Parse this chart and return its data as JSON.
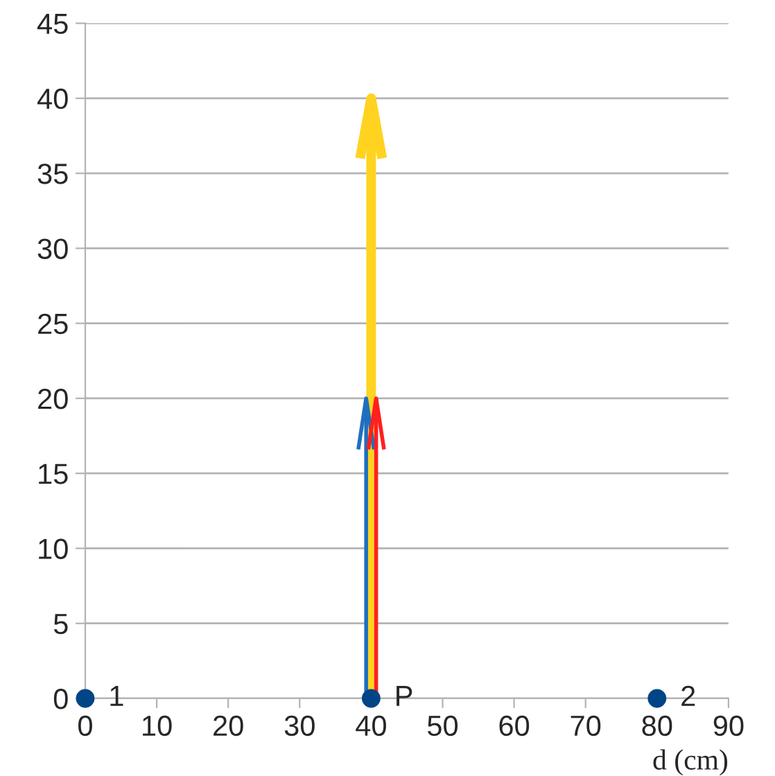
{
  "chart_data": {
    "type": "scatter",
    "xlabel": "d (cm)",
    "xlim": [
      0,
      90
    ],
    "xticks": [
      0,
      10,
      20,
      30,
      40,
      50,
      60,
      70,
      80,
      90
    ],
    "ylim": [
      0,
      45
    ],
    "yticks": [
      0,
      5,
      10,
      15,
      20,
      25,
      30,
      35,
      40,
      45
    ],
    "grid": "y",
    "legend": false,
    "series": [
      {
        "type": "line",
        "color": "#ffd320",
        "x": [
          40,
          40
        ],
        "values": [
          0,
          40
        ]
      },
      {
        "type": "line",
        "color": "#1f6fc0",
        "x": [
          39.3,
          39.3
        ],
        "values": [
          0,
          20
        ]
      },
      {
        "type": "line",
        "color": "#ff2020",
        "x": [
          40.7,
          40.7
        ],
        "values": [
          0,
          20
        ]
      },
      {
        "color": "#004586",
        "marker": "circle",
        "x": [
          0,
          40,
          80
        ],
        "values": [
          0,
          0,
          0
        ]
      }
    ],
    "annotations": [
      {
        "text": "1",
        "x": 0,
        "y": 0
      },
      {
        "text": "P",
        "x": 40,
        "y": 0
      },
      {
        "text": "2",
        "x": 80,
        "y": 0
      }
    ]
  }
}
